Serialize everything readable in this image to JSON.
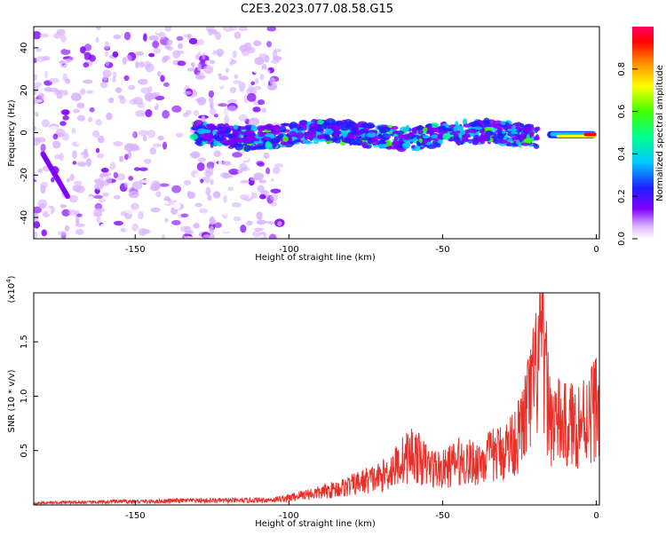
{
  "title": "C2E3.2023.077.08.58.G15",
  "colorbar": {
    "label": "Normalized spectral amplitude",
    "ticks": [
      "0.0",
      "0.2",
      "0.4",
      "0.6",
      "0.8"
    ],
    "tick_values": [
      0.0,
      0.2,
      0.4,
      0.6,
      0.8
    ]
  },
  "chart_data": [
    {
      "type": "heatmap",
      "title": "C2E3.2023.077.08.58.G15",
      "xlabel": "Height of straight line (km)",
      "ylabel": "Frequency (Hz)",
      "xlim": [
        -183,
        1
      ],
      "ylim": [
        -50,
        50
      ],
      "x_ticks": [
        -150,
        -100,
        -50,
        0
      ],
      "y_ticks": [
        -40,
        -20,
        0,
        20,
        40
      ],
      "colorbar_range": [
        0,
        1
      ],
      "colorbar_label": "Normalized spectral amplitude",
      "features": [
        {
          "x_range": [
            -183,
            -103
          ],
          "freq_range": [
            -50,
            50
          ],
          "amplitude": 0.15
        },
        {
          "x_range": [
            -180,
            -172
          ],
          "freq_range": [
            -30,
            -10
          ],
          "amplitude": 0.2
        },
        {
          "x_range": [
            -131,
            -19
          ],
          "freq_range": [
            -8,
            6
          ],
          "amplitude": 0.4
        },
        {
          "x_range": [
            -16,
            0
          ],
          "freq_range": [
            -4,
            0
          ],
          "amplitude": 0.9
        }
      ]
    },
    {
      "type": "line",
      "xlabel": "Height of straight line (km)",
      "ylabel": "SNR (10 * v/v)",
      "y_multiplier": "(x10",
      "y_multiplier_exp": "4",
      "y_multiplier_close": ")",
      "xlim": [
        -183,
        1
      ],
      "ylim": [
        0,
        1.95
      ],
      "x_ticks": [
        -150,
        -100,
        -50,
        0
      ],
      "y_ticks": [
        0.5,
        1.0,
        1.5
      ],
      "y_tick_labels": [
        "0.5",
        "1.0",
        "1.5"
      ],
      "series_color": "#e8302a",
      "x": [
        -183,
        -175,
        -165,
        -155,
        -145,
        -135,
        -125,
        -115,
        -105,
        -100,
        -95,
        -90,
        -85,
        -80,
        -75,
        -70,
        -65,
        -60,
        -55,
        -50,
        -45,
        -40,
        -35,
        -30,
        -25,
        -20,
        -18,
        -15,
        -10,
        -5,
        0
      ],
      "values": [
        0.02,
        0.03,
        0.03,
        0.04,
        0.04,
        0.05,
        0.05,
        0.05,
        0.06,
        0.08,
        0.12,
        0.14,
        0.18,
        0.22,
        0.28,
        0.32,
        0.45,
        0.6,
        0.45,
        0.4,
        0.5,
        0.48,
        0.55,
        0.62,
        0.8,
        1.4,
        1.9,
        1.0,
        0.9,
        0.95,
        1.15
      ]
    }
  ]
}
